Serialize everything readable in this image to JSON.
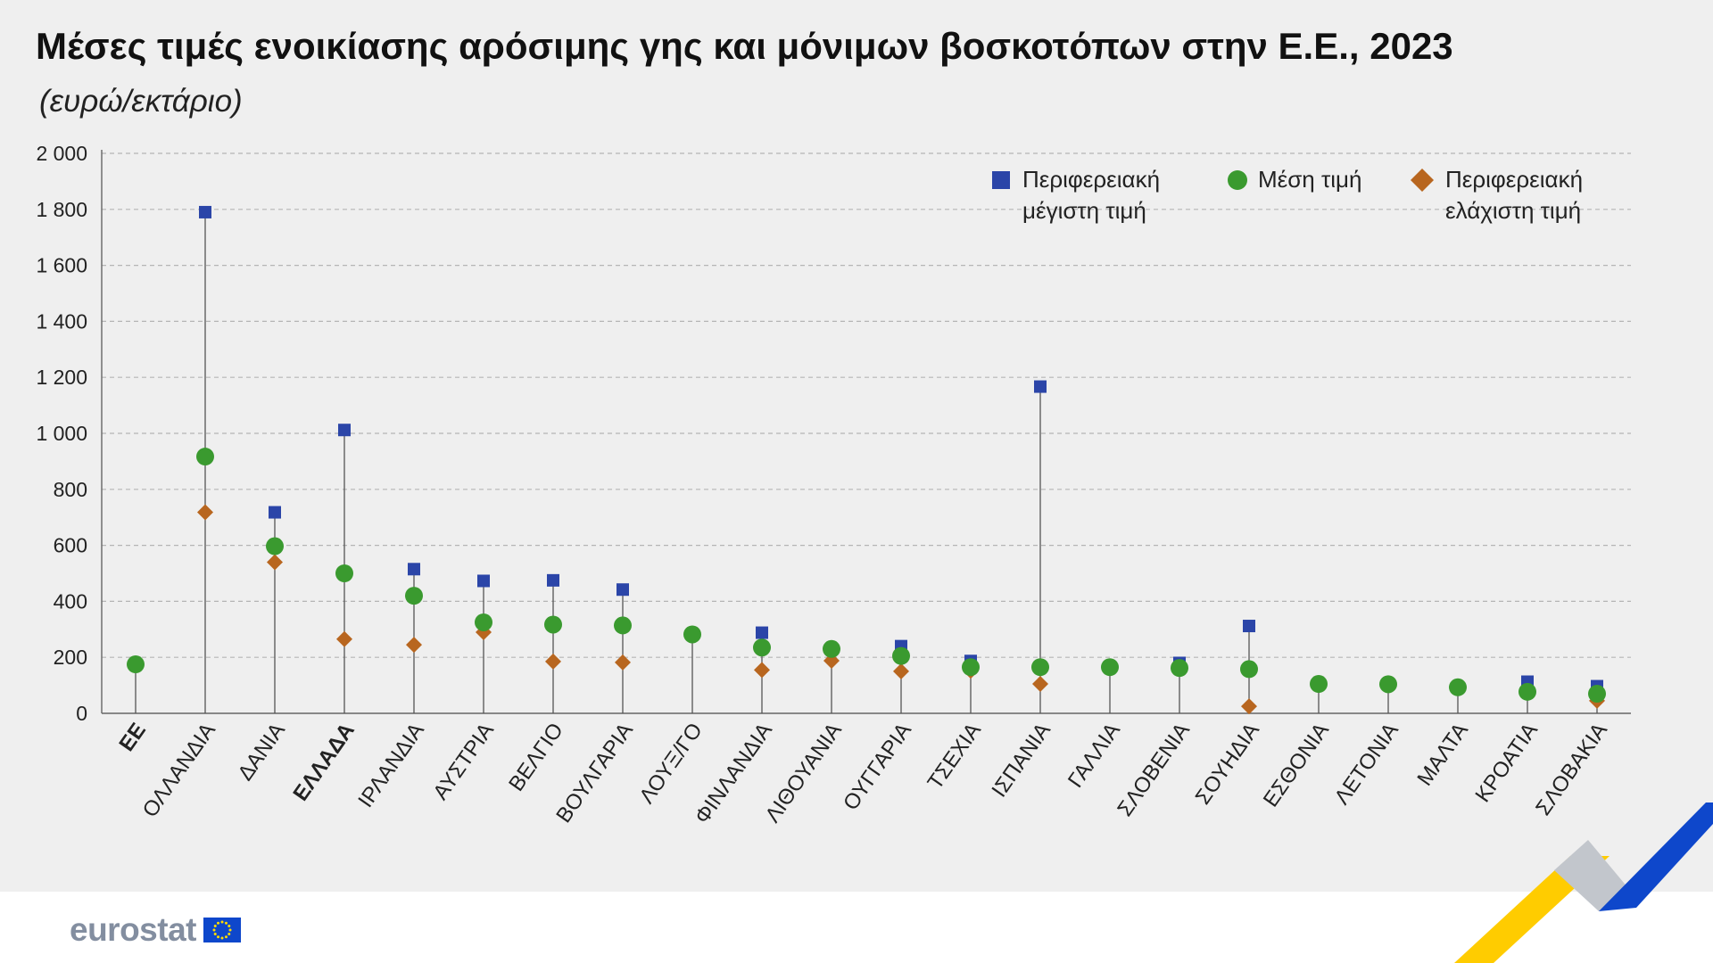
{
  "chart_data": {
    "type": "scatter",
    "title": "Μέσες τιμές ενοικίασης αρόσιμης γης και μόνιμων βοσκοτόπων στην Ε.Ε., 2023",
    "subtitle": "(ευρώ/εκτάριο)",
    "xlabel": "",
    "ylabel": "",
    "ylim": [
      0,
      2000
    ],
    "yticks": [
      0,
      200,
      400,
      600,
      800,
      1000,
      1200,
      1400,
      1600,
      1800,
      2000
    ],
    "ytick_labels": [
      "0",
      "200",
      "400",
      "600",
      "800",
      "1 000",
      "1 200",
      "1 400",
      "1 600",
      "1 800",
      "2 000"
    ],
    "grid": true,
    "legend_position": "top-right",
    "categories": [
      "ΕΕ",
      "ΟΛΛΑΝΔΙΑ",
      "ΔΑΝΙΑ",
      "ΕΛΛΑΔΑ",
      "ΙΡΛΑΝΔΙΑ",
      "ΑΥΣΤΡΙΑ",
      "ΒΕΛΓΙΟ",
      "ΒΟΥΛΓΑΡΙΑ",
      "ΛΟΥΞ/ΓΟ",
      "ΦΙΝΛΑΝΔΙΑ",
      "ΛΙΘΟΥΑΝΙΑ",
      "ΟΥΓΓΑΡΙΑ",
      "ΤΣΕΧΙΑ",
      "ΙΣΠΑΝΙΑ",
      "ΓΑΛΛΙΑ",
      "ΣΛΟΒΕΝΙΑ",
      "ΣΟΥΗΔΙΑ",
      "ΕΣΘΟΝΙΑ",
      "ΛΕΤΟΝΙΑ",
      "ΜΑΛΤΑ",
      "ΚΡΟΑΤΙΑ",
      "ΣΛΟΒΑΚΙΑ"
    ],
    "bold_categories": [
      "ΕΕ",
      "ΕΛΛΑΔΑ"
    ],
    "series": [
      {
        "name": "Περιφερειακή μέγιστη τιμή",
        "marker": "square",
        "color": "#2b45a8",
        "values": [
          null,
          1790,
          718,
          1012,
          515,
          473,
          475,
          442,
          null,
          288,
          null,
          240,
          187,
          1167,
          null,
          180,
          312,
          null,
          null,
          null,
          113,
          97
        ]
      },
      {
        "name": "Μέση τιμή",
        "marker": "circle",
        "color": "#3a9a2f",
        "values": [
          175,
          917,
          597,
          500,
          420,
          325,
          317,
          314,
          282,
          235,
          230,
          205,
          165,
          165,
          165,
          162,
          158,
          105,
          104,
          93,
          77,
          70
        ]
      },
      {
        "name": "Περιφερειακή ελάχιστη τιμή",
        "marker": "diamond",
        "color": "#b8661f",
        "values": [
          null,
          718,
          540,
          265,
          245,
          290,
          185,
          182,
          null,
          155,
          188,
          150,
          152,
          105,
          null,
          165,
          25,
          null,
          null,
          null,
          null,
          45
        ]
      }
    ]
  },
  "legend": {
    "max_label": [
      "Περιφερειακή",
      "μέγιστη τιμή"
    ],
    "mean_label": [
      "Μέση τιμή"
    ],
    "min_label": [
      "Περιφερειακή",
      "ελάχιστη τιμή"
    ]
  },
  "footer": {
    "logo_text": "eurostat"
  },
  "colors": {
    "background_panel": "#efefef",
    "gridline": "#b5b5b5",
    "stem": "#555555",
    "logo_text": "#838ea0",
    "eu_flag_blue": "#0e47cb",
    "eu_flag_star": "#ffdd00",
    "ribbon_yellow": "#ffcc00",
    "ribbon_grey": "#c2c6cc",
    "ribbon_blue": "#0e47cb"
  }
}
